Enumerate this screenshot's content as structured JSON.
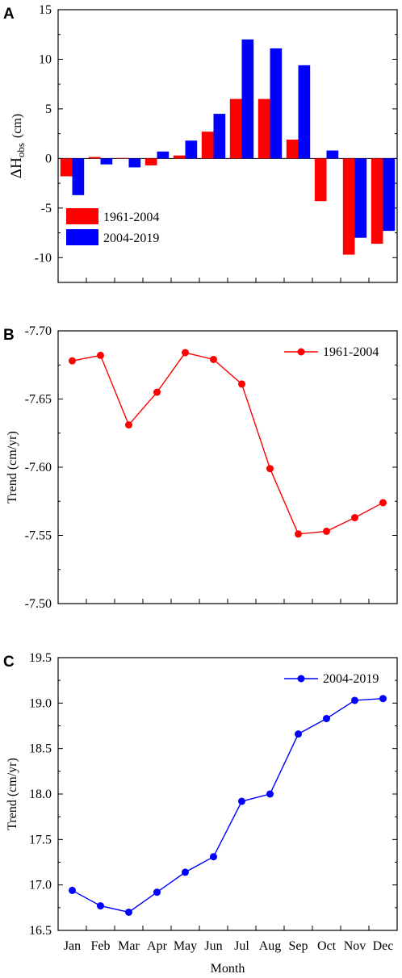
{
  "figure": {
    "xlabel": "Month",
    "months": [
      "Jan",
      "Feb",
      "Mar",
      "Apr",
      "May",
      "Jun",
      "Jul",
      "Aug",
      "Sep",
      "Oct",
      "Nov",
      "Dec"
    ]
  },
  "chart_data": [
    {
      "panel": "A",
      "type": "bar",
      "ylabel_main": "ΔH",
      "ylabel_sub": "obs",
      "ylabel_unit": "(cm)",
      "ylim": [
        -12.5,
        15
      ],
      "yticks": [
        -10,
        -5,
        0,
        5,
        10,
        15
      ],
      "ytick_labels": [
        "-10",
        "-5",
        "0",
        "5",
        "10",
        "15"
      ],
      "legend_position": "bottom-left",
      "series": [
        {
          "name": "1961-2004",
          "color": "#ff0000",
          "values": [
            -1.8,
            0.15,
            0.05,
            -0.7,
            0.3,
            2.7,
            6.0,
            6.0,
            1.9,
            -4.3,
            -9.7,
            -8.6
          ]
        },
        {
          "name": "2004-2019",
          "color": "#0000ff",
          "values": [
            -3.7,
            -0.6,
            -0.9,
            0.7,
            1.8,
            4.5,
            12.0,
            11.1,
            9.4,
            0.8,
            -8.0,
            -7.3
          ]
        }
      ]
    },
    {
      "panel": "B",
      "type": "line",
      "ylabel": "Trend (cm/yr)",
      "ylim": [
        -7.5,
        -7.7
      ],
      "reversed": true,
      "yticks": [
        -7.7,
        -7.65,
        -7.6,
        -7.55,
        -7.5
      ],
      "ytick_labels": [
        "-7.70",
        "-7.65",
        "-7.60",
        "-7.55",
        "-7.50"
      ],
      "legend_position": "top-right",
      "series": [
        {
          "name": "1961-2004",
          "color": "#ff0000",
          "values": [
            -7.678,
            -7.682,
            -7.631,
            -7.655,
            -7.684,
            -7.679,
            -7.661,
            -7.599,
            -7.551,
            -7.553,
            -7.563,
            -7.574
          ]
        }
      ]
    },
    {
      "panel": "C",
      "type": "line",
      "ylabel": "Trend (cm/yr)",
      "ylim": [
        16.5,
        19.5
      ],
      "yticks": [
        16.5,
        17.0,
        17.5,
        18.0,
        18.5,
        19.0,
        19.5
      ],
      "ytick_labels": [
        "16.5",
        "17.0",
        "17.5",
        "18.0",
        "18.5",
        "19.0",
        "19.5"
      ],
      "legend_position": "top-right",
      "series": [
        {
          "name": "2004-2019",
          "color": "#0000ff",
          "values": [
            16.94,
            16.77,
            16.7,
            16.92,
            17.14,
            17.31,
            17.92,
            18.0,
            18.66,
            18.83,
            19.03,
            19.05
          ]
        }
      ]
    }
  ]
}
